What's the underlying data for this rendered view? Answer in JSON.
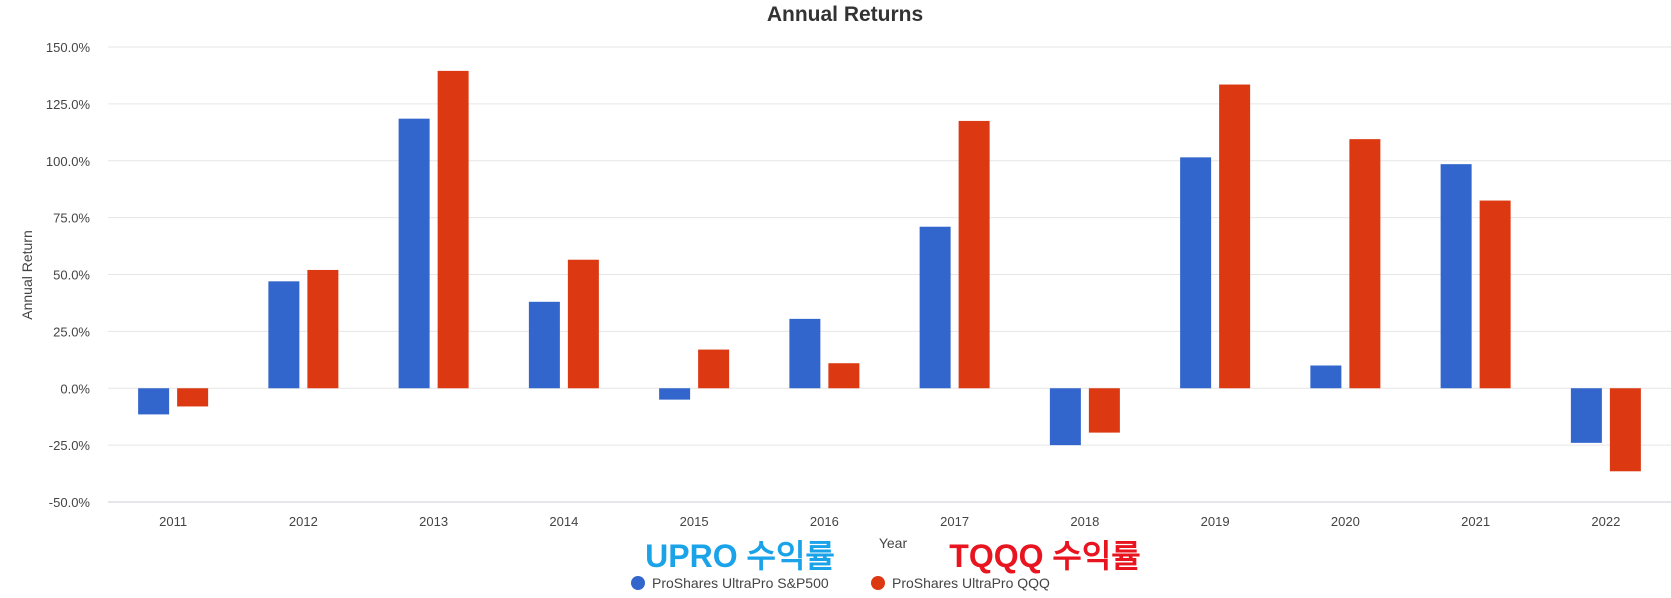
{
  "chart_data": {
    "type": "bar",
    "title": "Annual Returns",
    "xlabel": "Year",
    "ylabel": "Annual Return",
    "categories": [
      "2011",
      "2012",
      "2013",
      "2014",
      "2015",
      "2016",
      "2017",
      "2018",
      "2019",
      "2020",
      "2021",
      "2022"
    ],
    "ylim": [
      -50,
      150
    ],
    "yticks": [
      -50,
      -25,
      0,
      25,
      50,
      75,
      100,
      125,
      150
    ],
    "ytick_labels": [
      "-50.0%",
      "-25.0%",
      "0.0%",
      "25.0%",
      "50.0%",
      "75.0%",
      "100.0%",
      "125.0%",
      "150.0%"
    ],
    "grid": true,
    "legend_position": "bottom-center",
    "series": [
      {
        "name": "ProShares UltraPro S&P500",
        "color": "#3366cc",
        "values": [
          -11.5,
          47.0,
          118.5,
          38.0,
          -5.0,
          30.5,
          71.0,
          -25.0,
          101.5,
          10.0,
          98.5,
          -24.0
        ]
      },
      {
        "name": "ProShares UltraPro QQQ",
        "color": "#dc3912",
        "values": [
          -8.0,
          52.0,
          139.5,
          56.5,
          17.0,
          11.0,
          117.5,
          -19.5,
          133.5,
          109.5,
          82.5,
          -36.5
        ]
      }
    ],
    "annotations": [
      {
        "text": "UPRO 수익률",
        "color": "#1aa3e8"
      },
      {
        "text": "TQQQ 수익률",
        "color": "#e8141f"
      }
    ]
  }
}
